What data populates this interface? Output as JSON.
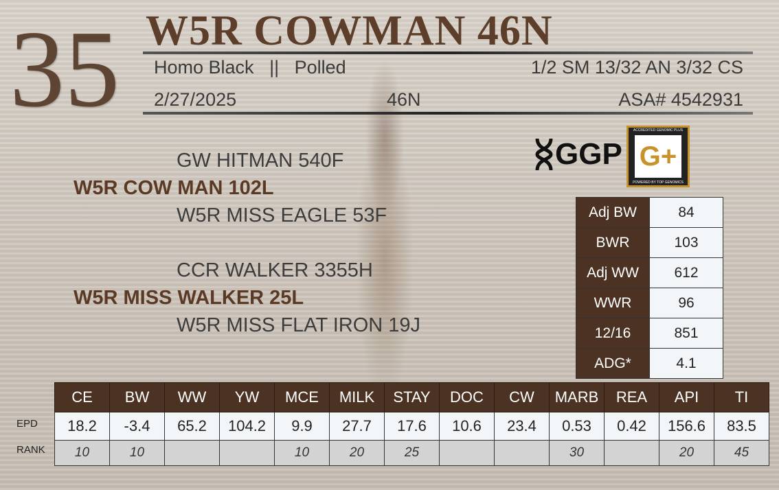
{
  "lot_number": "35",
  "title": "W5R COWMAN 46N",
  "info": {
    "color": "Homo Black",
    "sep": "||",
    "horn": "Polled",
    "breed": "1/2 SM 13/32 AN 3/32 CS",
    "birth_date": "2/27/2025",
    "tattoo": "46N",
    "registration": "ASA# 4542931"
  },
  "pedigree": {
    "sire_sire": "GW HITMAN 540F",
    "sire": "W5R COW MAN 102L",
    "sire_dam": "W5R MISS EAGLE 53F",
    "dam_sire": "CCR WALKER 3355H",
    "dam": "W5R MISS WALKER 25L",
    "dam_dam": "W5R MISS FLAT IRON 19J"
  },
  "logos": {
    "ggp": "GGP",
    "gplus": "G+",
    "gplus_ring": "ACCREDITED GENOMIC PLUS",
    "gplus_footer": "POWERED BY TOP GENOMICS"
  },
  "stats": [
    {
      "label": "Adj BW",
      "value": "84"
    },
    {
      "label": "BWR",
      "value": "103"
    },
    {
      "label": "Adj WW",
      "value": "612"
    },
    {
      "label": "WWR",
      "value": "96"
    },
    {
      "label": "12/16",
      "value": "851"
    },
    {
      "label": "ADG*",
      "value": "4.1"
    }
  ],
  "epd_table": {
    "row_labels": {
      "epd": "EPD",
      "rank": "RANK"
    },
    "headers": [
      "CE",
      "BW",
      "WW",
      "YW",
      "MCE",
      "MILK",
      "STAY",
      "DOC",
      "CW",
      "MARB",
      "REA",
      "API",
      "TI"
    ],
    "epd": [
      "18.2",
      "-3.4",
      "65.2",
      "104.2",
      "9.9",
      "27.7",
      "17.6",
      "10.6",
      "23.4",
      "0.53",
      "0.42",
      "156.6",
      "83.5"
    ],
    "rank": [
      "10",
      "10",
      "",
      "",
      "10",
      "20",
      "25",
      "",
      "",
      "30",
      "",
      "20",
      "45"
    ]
  },
  "colors": {
    "brown": "#4b3223",
    "title": "#5c3e2a",
    "gold": "#c8922a"
  }
}
